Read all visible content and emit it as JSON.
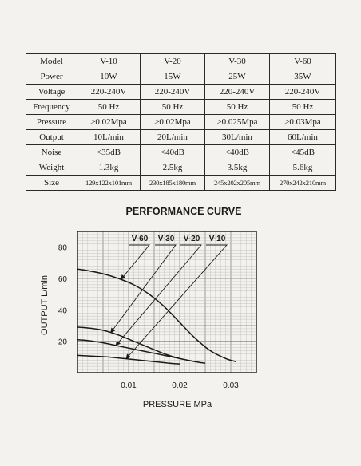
{
  "spec_table": {
    "columns": [
      "Model",
      "V-10",
      "V-20",
      "V-30",
      "V-60"
    ],
    "rows": [
      {
        "label": "Power",
        "values": [
          "10W",
          "15W",
          "25W",
          "35W"
        ]
      },
      {
        "label": "Voltage",
        "values": [
          "220-240V",
          "220-240V",
          "220-240V",
          "220-240V"
        ]
      },
      {
        "label": "Frequency",
        "values": [
          "50 Hz",
          "50 Hz",
          "50 Hz",
          "50 Hz"
        ]
      },
      {
        "label": "Pressure",
        "values": [
          ">0.02Mpa",
          ">0.02Mpa",
          ">0.025Mpa",
          ">0.03Mpa"
        ]
      },
      {
        "label": "Output",
        "values": [
          "10L/min",
          "20L/min",
          "30L/min",
          "60L/min"
        ]
      },
      {
        "label": "Noise",
        "values": [
          "<35dB",
          "<40dB",
          "<40dB",
          "<45dB"
        ]
      },
      {
        "label": "Weight",
        "values": [
          "1.3kg",
          "2.5kg",
          "3.5kg",
          "5.6kg"
        ]
      },
      {
        "label": "Size",
        "values": [
          "129x122x101mm",
          "230x185x180mm",
          "245x202x205mm",
          "270x242x210mm"
        ]
      }
    ]
  },
  "chart_data": {
    "type": "line",
    "title": "PERFORMANCE CURVE",
    "xlabel": "PRESSURE MPa",
    "ylabel": "OUTPUT L/min",
    "xlim": [
      0,
      0.035
    ],
    "ylim": [
      0,
      90
    ],
    "xticks": [
      "0.01",
      "0.02",
      "0.03"
    ],
    "yticks": [
      "20",
      "40",
      "60",
      "80"
    ],
    "grid": true,
    "legend_position": "top-right",
    "series": [
      {
        "name": "V-60",
        "x": [
          0,
          0.002,
          0.005,
          0.008,
          0.011,
          0.014,
          0.017,
          0.02,
          0.023,
          0.026,
          0.029,
          0.031
        ],
        "y": [
          66,
          65,
          63,
          60,
          56,
          50,
          42,
          32,
          22,
          14,
          9,
          7
        ]
      },
      {
        "name": "V-30",
        "x": [
          0,
          0.002,
          0.005,
          0.008,
          0.011,
          0.014,
          0.017,
          0.02,
          0.023
        ],
        "y": [
          29,
          28.5,
          27,
          24,
          20,
          16,
          12,
          9,
          7
        ]
      },
      {
        "name": "V-20",
        "x": [
          0,
          0.002,
          0.005,
          0.008,
          0.011,
          0.014,
          0.017,
          0.02,
          0.023,
          0.025
        ],
        "y": [
          21,
          20.5,
          19,
          17,
          15,
          13,
          11,
          9,
          7,
          6
        ]
      },
      {
        "name": "V-10",
        "x": [
          0,
          0.003,
          0.006,
          0.009,
          0.012,
          0.015,
          0.018,
          0.02
        ],
        "y": [
          11,
          10.5,
          10,
          9,
          8,
          7,
          6,
          5.5
        ]
      }
    ]
  }
}
